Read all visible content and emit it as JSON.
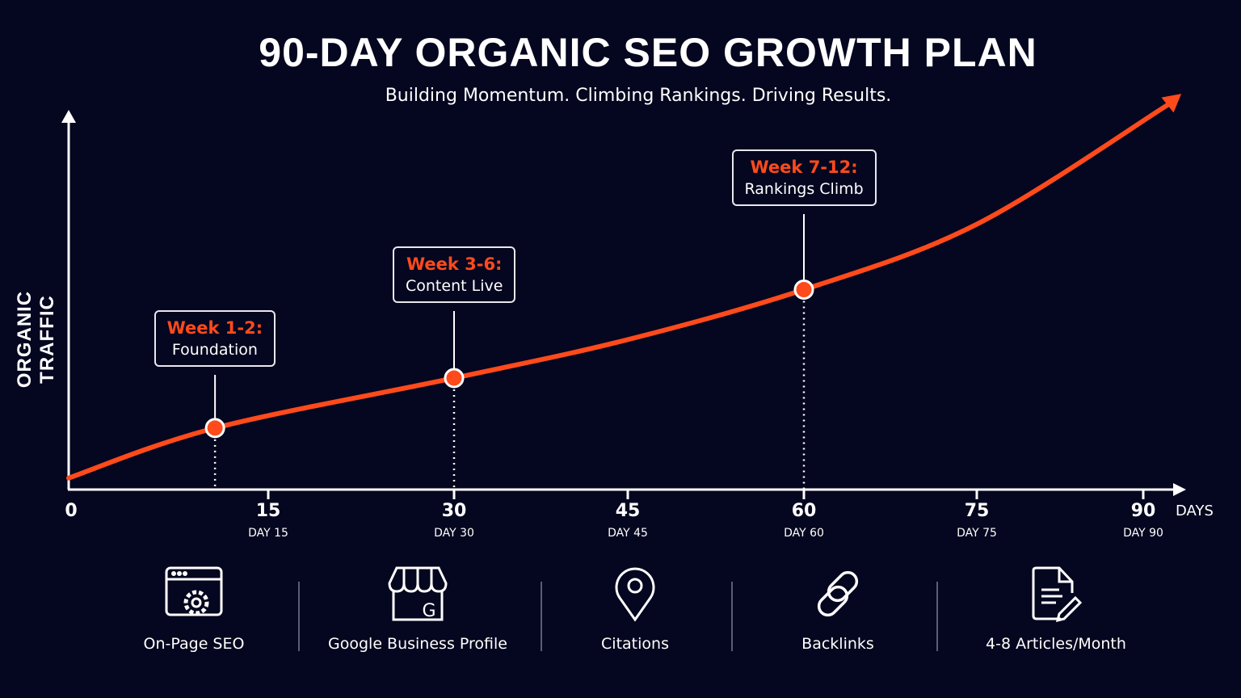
{
  "title": "90-DAY ORGANIC SEO GROWTH PLAN",
  "subtitle": "Building Momentum. Climbing Rankings. Driving Results.",
  "colors": {
    "background": "#05061f",
    "accent": "#ff4a1c",
    "axis": "#ffffff"
  },
  "chart_data": {
    "type": "line",
    "title": "90-DAY ORGANIC SEO GROWTH PLAN",
    "subtitle": "Building Momentum. Climbing Rankings. Driving Results.",
    "xlabel": "DAYS",
    "ylabel": "ORGANIC TRAFFIC",
    "xlim": [
      0,
      92
    ],
    "ylim": [
      0,
      100
    ],
    "grid": false,
    "x_ticks": [
      {
        "value": 0,
        "label": "0",
        "sub": ""
      },
      {
        "value": 15,
        "label": "15",
        "sub": "DAY 15"
      },
      {
        "value": 30,
        "label": "30",
        "sub": "DAY 30"
      },
      {
        "value": 45,
        "label": "45",
        "sub": "DAY 45"
      },
      {
        "value": 60,
        "label": "60",
        "sub": "DAY 60"
      },
      {
        "value": 75,
        "label": "75",
        "sub": "DAY 75"
      },
      {
        "value": 90,
        "label": "90",
        "sub": "DAY 90"
      }
    ],
    "series": [
      {
        "x": [
          0,
          11,
          30,
          45,
          60,
          75,
          92
        ],
        "y": [
          3,
          16,
          29,
          39,
          52,
          69,
          100
        ]
      }
    ],
    "milestones": [
      {
        "day": 11,
        "traffic": 16,
        "title": "Week 1-2:",
        "label": "Foundation"
      },
      {
        "day": 30,
        "traffic": 29,
        "title": "Week 3-6:",
        "label": "Content Live"
      },
      {
        "day": 60,
        "traffic": 52,
        "title": "Week 7-12:",
        "label": "Rankings Climb"
      }
    ]
  },
  "tools": [
    {
      "icon": "browser-gear-icon",
      "label": "On-Page SEO"
    },
    {
      "icon": "storefront-g-icon",
      "label": "Google Business Profile"
    },
    {
      "icon": "map-pin-icon",
      "label": "Citations"
    },
    {
      "icon": "chain-link-icon",
      "label": "Backlinks"
    },
    {
      "icon": "document-pencil-icon",
      "label": "4-8 Articles/Month"
    }
  ]
}
